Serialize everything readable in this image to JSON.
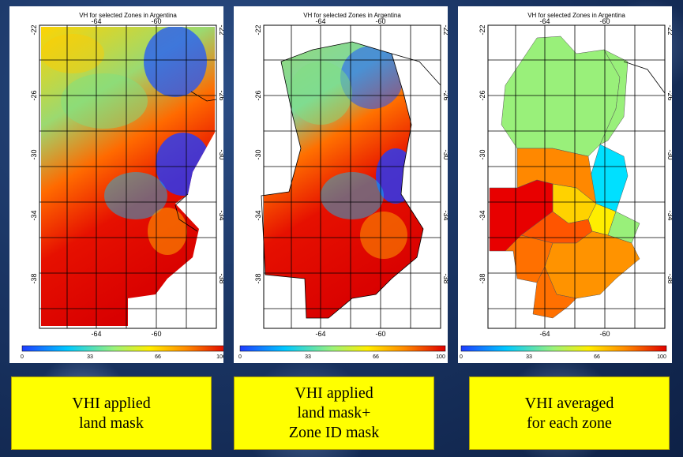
{
  "panels": [
    {
      "title": "VH  for selected Zones in Argentina",
      "lon_ticks": [
        "-64",
        "-60"
      ],
      "lat_ticks": [
        "-22",
        "-26",
        "-30",
        "-34",
        "-38"
      ],
      "colorbar_ticks": [
        "0",
        "33",
        "66",
        "100"
      ],
      "caption": [
        "VHI applied",
        "land mask"
      ]
    },
    {
      "title": "VH  for selected Zones in Argentina",
      "lon_ticks": [
        "-64",
        "-60"
      ],
      "lat_ticks": [
        "-22",
        "-26",
        "-30",
        "-34",
        "-38"
      ],
      "colorbar_ticks": [
        "0",
        "33",
        "66",
        "100"
      ],
      "caption": [
        "VHI applied",
        "land mask+",
        "Zone ID mask"
      ]
    },
    {
      "title": "VH  for selected Zones in Argentina",
      "lon_ticks": [
        "-64",
        "-60"
      ],
      "lat_ticks": [
        "-22",
        "-26",
        "-30",
        "-34",
        "-38"
      ],
      "colorbar_ticks": [
        "0",
        "33",
        "66",
        "100"
      ],
      "caption": [
        "VHI averaged",
        "for each zone"
      ]
    }
  ],
  "colorbar": {
    "min": 0,
    "max": 100,
    "colors": [
      "#1f3cff",
      "#00c8ff",
      "#9bf27a",
      "#ffee00",
      "#ff8a00",
      "#e00000"
    ]
  }
}
